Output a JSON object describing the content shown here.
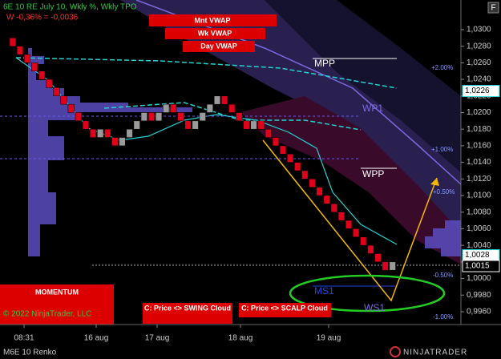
{
  "header": {
    "title": "6E 10 RE July 10, Wkly %, Wkly TPO",
    "subtitle": "W -0,36% = -0,0036",
    "f_button": "F"
  },
  "buttons": [
    "Mnt VWAP",
    "Wk VWAP",
    "Day VWAP",
    "MOMENTUM",
    "C: Price <> SWING Cloud",
    "C: Price <> SCALP Cloud"
  ],
  "levels": [
    "MPP",
    "WP1",
    "WPP",
    "MS1",
    "WS1"
  ],
  "percent_labels": [
    "+2.00%",
    "+1.00%",
    "+0.50%",
    "-0.50%",
    "-1.00%"
  ],
  "copyright": "© 2022 NinjaTrader, LLC",
  "footer": {
    "instrument": "M6E 10 Renko",
    "brand": "NINJATRADER"
  },
  "chart_data": {
    "type": "renko",
    "x_labels": [
      "08:31",
      "16 aug",
      "17 aug",
      "18 aug",
      "19 aug"
    ],
    "brick_open": 1.029,
    "bricks": [
      1.028,
      1.027,
      1.026,
      1.025,
      1.024,
      1.023,
      1.022,
      1.021,
      1.02,
      1.019,
      1.018,
      1.017,
      1.018,
      1.017,
      1.016,
      1.017,
      1.018,
      1.019,
      1.02,
      1.019,
      1.02,
      1.021,
      1.02,
      1.019,
      1.018,
      1.019,
      1.02,
      1.021,
      1.022,
      1.021,
      1.02,
      1.019,
      1.018,
      1.019,
      1.018,
      1.017,
      1.016,
      1.015,
      1.014,
      1.013,
      1.012,
      1.011,
      1.01,
      1.009,
      1.008,
      1.007,
      1.006,
      1.005,
      1.004,
      1.003,
      1.002,
      1.001,
      1.002
    ],
    "down_color": "#e0001a",
    "up_color": "#9a9a9a",
    "ylim": [
      0.99445,
      1.03357
    ],
    "yticks": [
      {
        "value": 1.03,
        "label": "1,0300"
      },
      {
        "value": 1.028,
        "label": "1,0280"
      },
      {
        "value": 1.026,
        "label": "1,0260"
      },
      {
        "value": 1.024,
        "label": "1,0240"
      },
      {
        "value": 1.022,
        "label": "1,0220"
      },
      {
        "value": 1.02,
        "label": "1,0200"
      },
      {
        "value": 1.018,
        "label": "1,0180"
      },
      {
        "value": 1.016,
        "label": "1,0160"
      },
      {
        "value": 1.014,
        "label": "1,0140"
      },
      {
        "value": 1.012,
        "label": "1,0120"
      },
      {
        "value": 1.01,
        "label": "1,0100"
      },
      {
        "value": 1.008,
        "label": "1,0080"
      },
      {
        "value": 1.006,
        "label": "1,0060"
      },
      {
        "value": 1.004,
        "label": "1,0040"
      },
      {
        "value": 1.002,
        "label": "1,0020"
      },
      {
        "value": 1.0,
        "label": "1,0000"
      },
      {
        "value": 0.998,
        "label": "0,9980"
      },
      {
        "value": 0.996,
        "label": "0,9960"
      }
    ],
    "price_markers": [
      {
        "value": 1.0226,
        "label": "1,0226"
      },
      {
        "value": 1.0028,
        "label": "1,0028"
      },
      {
        "value": 1.0015,
        "label": "1,0015"
      }
    ]
  }
}
